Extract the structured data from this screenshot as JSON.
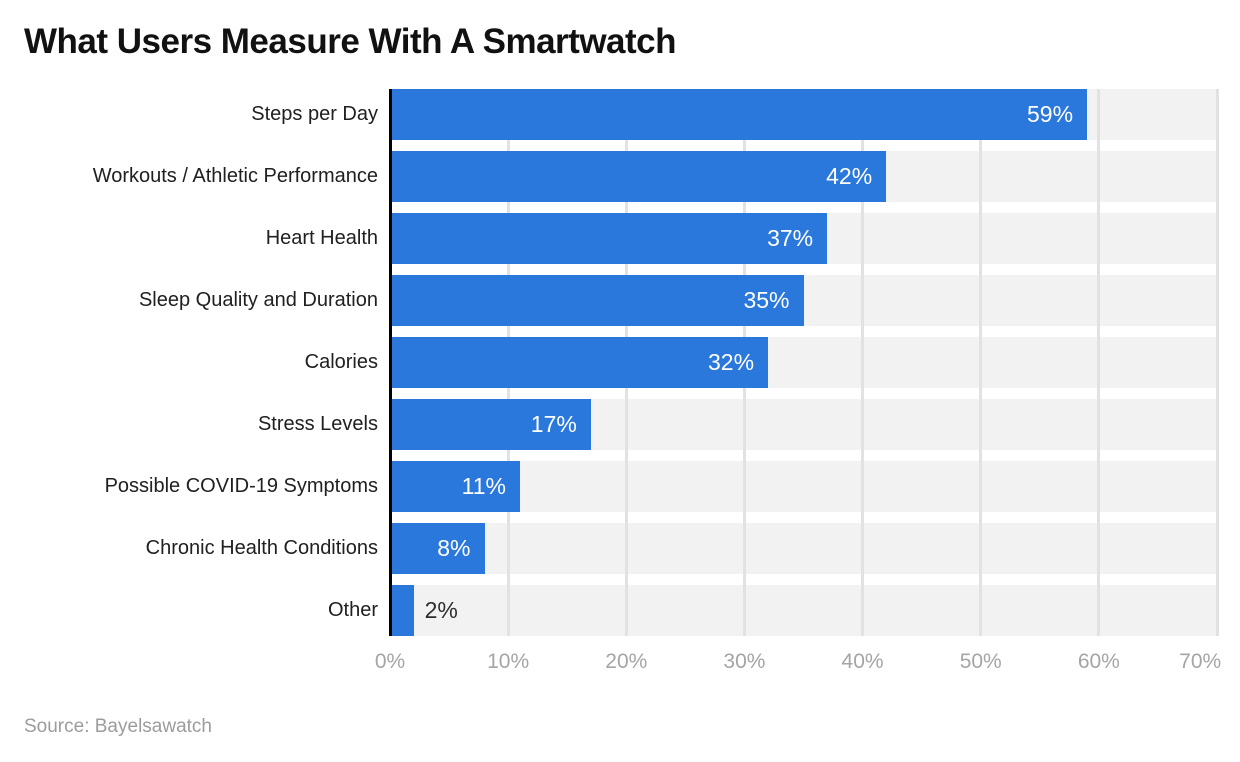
{
  "title": "What Users Measure With A Smartwatch",
  "source": "Source: Bayelsawatch",
  "chart_data": {
    "type": "bar",
    "orientation": "horizontal",
    "title": "What Users Measure With A Smartwatch",
    "categories": [
      "Steps per Day",
      "Workouts / Athletic Performance",
      "Heart Health",
      "Sleep Quality and Duration",
      "Calories",
      "Stress Levels",
      "Possible COVID-19 Symptoms",
      "Chronic Health Conditions",
      "Other"
    ],
    "values": [
      59,
      42,
      37,
      35,
      32,
      17,
      11,
      8,
      2
    ],
    "value_labels": [
      "59%",
      "42%",
      "37%",
      "35%",
      "32%",
      "17%",
      "11%",
      "8%",
      "2%"
    ],
    "xlabel": "",
    "ylabel": "",
    "xlim": [
      0,
      70
    ],
    "x_ticks": [
      "0%",
      "10%",
      "20%",
      "30%",
      "40%",
      "50%",
      "60%",
      "70%"
    ],
    "grid": true,
    "legend": false,
    "colors": {
      "bar": "#2b78dd",
      "track": "#f2f2f2",
      "gridline": "#e2e2e2",
      "axis_line": "#000000",
      "title_text": "#111111",
      "category_text": "#202020",
      "tick_text": "#a5a5a5",
      "source_text": "#9c9c9c",
      "value_inside": "#ffffff",
      "value_outside": "#2d2d2d"
    }
  }
}
